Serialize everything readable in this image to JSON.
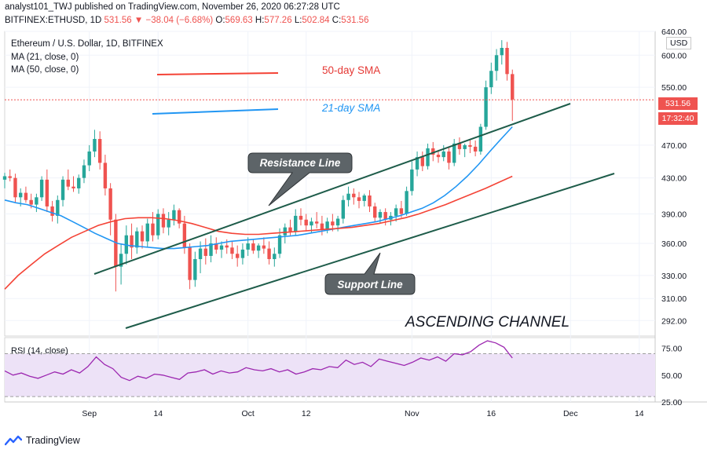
{
  "header": {
    "line1": "analyst101_TWJ published on TradingView.com, November 26, 2020 06:27:28 UTC",
    "symbol": "BITFINEX:ETHUSD, 1D",
    "last": "531.56",
    "arrow": "▼",
    "change": "−38.04 (−6.68%)",
    "o_label": "O:",
    "o_value": "569.63",
    "h_label": "H:",
    "h_value": "577.26",
    "l_label": "L:",
    "l_value": "502.84",
    "c_label": "C:",
    "c_value": "531.56"
  },
  "legend": {
    "title": "Ethereum / U.S. Dollar, 1D, BITFINEX",
    "ma21": "MA (21, close, 0)",
    "ma50": "MA (50, close, 0)",
    "rsi": "RSI (14, close)"
  },
  "price_axis": {
    "currency": "USD",
    "ticks": [
      "640.00",
      "600.00",
      "550.00",
      "470.00",
      "430.00",
      "390.00",
      "360.00",
      "330.00",
      "310.00",
      "292.00"
    ],
    "last_price": "531.56",
    "countdown": "17:32:40"
  },
  "rsi_axis": {
    "ticks": [
      "75.00",
      "50.00",
      "25.00"
    ]
  },
  "time_axis": {
    "ticks": [
      "Sep",
      "14",
      "Oct",
      "12",
      "Nov",
      "16",
      "Dec",
      "14"
    ]
  },
  "annotations": {
    "sma50": "50-day SMA",
    "sma21": "21-day SMA",
    "resistance": "Resistance Line",
    "support": "Support Line",
    "channel": "ASCENDING CHANNEL"
  },
  "brand": {
    "name": "TradingView"
  },
  "colors": {
    "up": "#26a69a",
    "down": "#ef5350",
    "ma21": "#2196f3",
    "ma50": "#f44336",
    "channel": "#1e5c4a",
    "rsi": "#9c27b0",
    "rsi_band": "#ede2f7"
  },
  "chart_data": {
    "type": "candlestick",
    "title": "Ethereum / U.S. Dollar, 1D, BITFINEX",
    "x_range": [
      "2020-08-16",
      "2020-12-17"
    ],
    "x_ticks": [
      "Sep",
      "14",
      "Oct",
      "12",
      "Nov",
      "16",
      "Dec",
      "14"
    ],
    "y_scale": "log",
    "ylim": [
      280,
      640
    ],
    "last_close": 531.56,
    "start_date": "2020-08-16",
    "candles_ohlc": [
      [
        428,
        436,
        418,
        432
      ],
      [
        432,
        440,
        426,
        430
      ],
      [
        430,
        435,
        402,
        408
      ],
      [
        408,
        418,
        398,
        413
      ],
      [
        413,
        420,
        402,
        405
      ],
      [
        405,
        412,
        396,
        400
      ],
      [
        400,
        412,
        392,
        408
      ],
      [
        408,
        432,
        404,
        428
      ],
      [
        428,
        440,
        392,
        398
      ],
      [
        398,
        404,
        382,
        388
      ],
      [
        388,
        410,
        380,
        405
      ],
      [
        405,
        432,
        398,
        428
      ],
      [
        428,
        440,
        416,
        420
      ],
      [
        420,
        432,
        414,
        418
      ],
      [
        418,
        434,
        412,
        430
      ],
      [
        430,
        452,
        424,
        445
      ],
      [
        445,
        470,
        438,
        462
      ],
      [
        462,
        490,
        455,
        478
      ],
      [
        478,
        488,
        440,
        448
      ],
      [
        448,
        458,
        410,
        418
      ],
      [
        418,
        424,
        368,
        384
      ],
      [
        384,
        390,
        316,
        338
      ],
      [
        338,
        360,
        322,
        350
      ],
      [
        350,
        378,
        340,
        368
      ],
      [
        368,
        380,
        345,
        356
      ],
      [
        356,
        376,
        350,
        372
      ],
      [
        372,
        378,
        355,
        362
      ],
      [
        362,
        385,
        356,
        380
      ],
      [
        380,
        392,
        362,
        368
      ],
      [
        368,
        395,
        364,
        390
      ],
      [
        390,
        396,
        370,
        376
      ],
      [
        376,
        392,
        368,
        384
      ],
      [
        384,
        400,
        378,
        394
      ],
      [
        394,
        396,
        375,
        380
      ],
      [
        380,
        388,
        350,
        356
      ],
      [
        356,
        360,
        318,
        326
      ],
      [
        326,
        352,
        320,
        345
      ],
      [
        345,
        362,
        332,
        355
      ],
      [
        355,
        365,
        340,
        348
      ],
      [
        348,
        368,
        342,
        360
      ],
      [
        360,
        366,
        350,
        354
      ],
      [
        354,
        362,
        346,
        358
      ],
      [
        358,
        364,
        350,
        356
      ],
      [
        356,
        362,
        345,
        350
      ],
      [
        350,
        358,
        338,
        346
      ],
      [
        346,
        360,
        340,
        354
      ],
      [
        354,
        366,
        348,
        360
      ],
      [
        360,
        364,
        350,
        353
      ],
      [
        353,
        360,
        346,
        358
      ],
      [
        358,
        366,
        350,
        355
      ],
      [
        355,
        362,
        340,
        345
      ],
      [
        345,
        356,
        338,
        350
      ],
      [
        350,
        375,
        346,
        368
      ],
      [
        368,
        380,
        360,
        376
      ],
      [
        376,
        384,
        368,
        372
      ],
      [
        372,
        395,
        368,
        388
      ],
      [
        388,
        396,
        378,
        384
      ],
      [
        384,
        390,
        372,
        378
      ],
      [
        378,
        386,
        370,
        382
      ],
      [
        382,
        392,
        375,
        380
      ],
      [
        380,
        388,
        368,
        374
      ],
      [
        374,
        386,
        370,
        382
      ],
      [
        382,
        390,
        372,
        378
      ],
      [
        378,
        388,
        372,
        385
      ],
      [
        385,
        410,
        380,
        405
      ],
      [
        405,
        420,
        398,
        412
      ],
      [
        412,
        418,
        400,
        408
      ],
      [
        408,
        414,
        396,
        404
      ],
      [
        404,
        412,
        398,
        410
      ],
      [
        410,
        416,
        392,
        398
      ],
      [
        398,
        402,
        382,
        386
      ],
      [
        386,
        395,
        380,
        392
      ],
      [
        392,
        396,
        378,
        384
      ],
      [
        384,
        392,
        378,
        388
      ],
      [
        388,
        400,
        382,
        396
      ],
      [
        396,
        404,
        386,
        390
      ],
      [
        390,
        420,
        388,
        415
      ],
      [
        415,
        450,
        410,
        440
      ],
      [
        440,
        462,
        432,
        455
      ],
      [
        455,
        462,
        438,
        444
      ],
      [
        444,
        472,
        440,
        466
      ],
      [
        466,
        474,
        450,
        458
      ],
      [
        458,
        464,
        448,
        455
      ],
      [
        455,
        470,
        450,
        462
      ],
      [
        462,
        468,
        440,
        448
      ],
      [
        448,
        478,
        444,
        472
      ],
      [
        472,
        480,
        458,
        465
      ],
      [
        465,
        472,
        455,
        470
      ],
      [
        470,
        478,
        460,
        468
      ],
      [
        468,
        476,
        456,
        462
      ],
      [
        462,
        498,
        458,
        494
      ],
      [
        494,
        560,
        490,
        550
      ],
      [
        550,
        588,
        540,
        575
      ],
      [
        575,
        610,
        560,
        600
      ],
      [
        600,
        625,
        585,
        612
      ],
      [
        612,
        622,
        560,
        570
      ],
      [
        570,
        577,
        502,
        532
      ]
    ],
    "series": [
      {
        "name": "MA (21, close, 0)",
        "approx_values": [
          405,
          402,
          400,
          396,
          392,
          388,
          382,
          376,
          370,
          365,
          360,
          358,
          357,
          356,
          355,
          355,
          356,
          357,
          358,
          360,
          362,
          363,
          364,
          365,
          366,
          367,
          368,
          370,
          372,
          374,
          376,
          378,
          380,
          382,
          385,
          388,
          392,
          396,
          402,
          410,
          420,
          432,
          446,
          462,
          478,
          494
        ]
      },
      {
        "name": "MA (50, close, 0)",
        "approx_values": [
          318,
          330,
          340,
          350,
          358,
          366,
          372,
          378,
          382,
          385,
          386,
          386,
          385,
          383,
          380,
          376,
          372,
          370,
          369,
          369,
          370,
          371,
          372,
          373,
          374,
          375,
          376,
          378,
          380,
          383,
          386,
          390,
          395,
          400,
          406,
          412,
          418,
          425,
          432
        ]
      },
      {
        "name": "RSI (14, close)",
        "approx_values": [
          54,
          50,
          52,
          49,
          47,
          50,
          53,
          51,
          55,
          52,
          58,
          67,
          60,
          56,
          48,
          45,
          49,
          47,
          51,
          50,
          48,
          46,
          52,
          53,
          55,
          51,
          54,
          52,
          53,
          57,
          55,
          54,
          56,
          53,
          55,
          51,
          53,
          56,
          55,
          58,
          57,
          64,
          60,
          62,
          58,
          65,
          63,
          61,
          59,
          62,
          66,
          64,
          67,
          63,
          70,
          69,
          72,
          78,
          82,
          80,
          76,
          66
        ]
      }
    ],
    "rsi_ylim": [
      25,
      85
    ],
    "rsi_band": [
      30,
      70
    ]
  }
}
